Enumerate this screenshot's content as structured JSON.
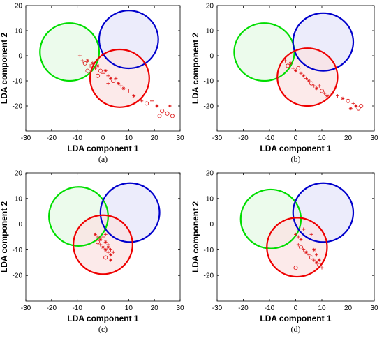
{
  "chart_data": [
    {
      "type": "scatter",
      "caption": "(a)",
      "xlabel": "LDA component 1",
      "ylabel": "LDA component 2",
      "xlim": [
        -30,
        30
      ],
      "ylim": [
        -30,
        20
      ],
      "xticks": [
        "-30",
        "-20",
        "-10",
        "0",
        "10",
        "20",
        "30"
      ],
      "yticks": [
        "20",
        "10",
        "0",
        "-10",
        "-20"
      ],
      "circles": [
        {
          "color": "#00dd00",
          "fill": "#e6fae6",
          "cx": -13,
          "cy": 1.5,
          "r": 11.5
        },
        {
          "color": "#0000cc",
          "fill": "#e6e6fa",
          "cx": 10,
          "cy": 6.5,
          "r": 11.5
        },
        {
          "color": "#ee0000",
          "fill": "#fbe3e3",
          "cx": 6.5,
          "cy": -9,
          "r": 11.5
        }
      ],
      "points": [
        {
          "x": -9,
          "y": 0,
          "m": "+"
        },
        {
          "x": -8,
          "y": -2,
          "m": "+"
        },
        {
          "x": -7,
          "y": -3,
          "m": "o"
        },
        {
          "x": -6,
          "y": -2,
          "m": "*"
        },
        {
          "x": -5,
          "y": -4,
          "m": "+"
        },
        {
          "x": -4,
          "y": -3,
          "m": "*"
        },
        {
          "x": -3,
          "y": -5,
          "m": "+"
        },
        {
          "x": -2,
          "y": -4,
          "m": "*"
        },
        {
          "x": -1,
          "y": -6,
          "m": "o"
        },
        {
          "x": 0,
          "y": -7,
          "m": "+"
        },
        {
          "x": 1,
          "y": -6,
          "m": "*"
        },
        {
          "x": 2,
          "y": -8,
          "m": "+"
        },
        {
          "x": 3,
          "y": -9,
          "m": "*"
        },
        {
          "x": 4,
          "y": -10,
          "m": "o"
        },
        {
          "x": 5,
          "y": -9,
          "m": "+"
        },
        {
          "x": 6,
          "y": -11,
          "m": "*"
        },
        {
          "x": 7,
          "y": -12,
          "m": "+"
        },
        {
          "x": 8,
          "y": -13,
          "m": "*"
        },
        {
          "x": -6,
          "y": -6,
          "m": "o"
        },
        {
          "x": -2,
          "y": -8,
          "m": "o"
        },
        {
          "x": 2,
          "y": -11,
          "m": "+"
        },
        {
          "x": 10,
          "y": -14,
          "m": "+"
        },
        {
          "x": 12,
          "y": -16,
          "m": "*"
        },
        {
          "x": 15,
          "y": -18,
          "m": "+"
        },
        {
          "x": 17,
          "y": -19,
          "m": "o"
        },
        {
          "x": 19,
          "y": -18,
          "m": "+"
        },
        {
          "x": 21,
          "y": -20,
          "m": "*"
        },
        {
          "x": 23,
          "y": -22,
          "m": "o"
        },
        {
          "x": 25,
          "y": -23,
          "m": "o"
        },
        {
          "x": 27,
          "y": -24,
          "m": "o"
        },
        {
          "x": 26,
          "y": -20,
          "m": "*"
        },
        {
          "x": 22,
          "y": -24,
          "m": "o"
        }
      ]
    },
    {
      "type": "scatter",
      "caption": "(b)",
      "xlabel": "LDA component 1",
      "ylabel": "LDA component 2",
      "xlim": [
        -30,
        30
      ],
      "ylim": [
        -30,
        20
      ],
      "xticks": [
        "-30",
        "-20",
        "-10",
        "0",
        "10",
        "20",
        "30"
      ],
      "yticks": [
        "20",
        "10",
        "0",
        "-10",
        "-20"
      ],
      "circles": [
        {
          "color": "#00dd00",
          "fill": "#e6fae6",
          "cx": -12,
          "cy": 1.5,
          "r": 11.5
        },
        {
          "color": "#0000cc",
          "fill": "#e6e6fa",
          "cx": 10.5,
          "cy": 5.5,
          "r": 11.5
        },
        {
          "color": "#ee0000",
          "fill": "#fbe3e3",
          "cx": 4.5,
          "cy": -8.5,
          "r": 11.5
        }
      ],
      "points": [
        {
          "x": -4,
          "y": -2,
          "m": "+"
        },
        {
          "x": -3,
          "y": -4,
          "m": "o"
        },
        {
          "x": -2,
          "y": -3,
          "m": "*"
        },
        {
          "x": -1,
          "y": -5,
          "m": "+"
        },
        {
          "x": 0,
          "y": -6,
          "m": "*"
        },
        {
          "x": 1,
          "y": -5,
          "m": "o"
        },
        {
          "x": 2,
          "y": -7,
          "m": "+"
        },
        {
          "x": 3,
          "y": -8,
          "m": "*"
        },
        {
          "x": 4,
          "y": -9,
          "m": "+"
        },
        {
          "x": 5,
          "y": -10,
          "m": "*"
        },
        {
          "x": 6,
          "y": -11,
          "m": "o"
        },
        {
          "x": 7,
          "y": -12,
          "m": "+"
        },
        {
          "x": 8,
          "y": -13,
          "m": "*"
        },
        {
          "x": 9,
          "y": -12,
          "m": "+"
        },
        {
          "x": 10,
          "y": -14,
          "m": "o"
        },
        {
          "x": 11,
          "y": -15,
          "m": "+"
        },
        {
          "x": 12,
          "y": -16,
          "m": "*"
        },
        {
          "x": 14,
          "y": -15,
          "m": "+"
        },
        {
          "x": 16,
          "y": -16,
          "m": "+"
        },
        {
          "x": 18,
          "y": -17,
          "m": "*"
        },
        {
          "x": 20,
          "y": -18,
          "m": "o"
        },
        {
          "x": 22,
          "y": -19,
          "m": "+"
        },
        {
          "x": 23,
          "y": -20,
          "m": "*"
        },
        {
          "x": 24,
          "y": -21,
          "m": "o"
        },
        {
          "x": 25,
          "y": -20,
          "m": "o"
        },
        {
          "x": 21,
          "y": -21,
          "m": "*"
        }
      ]
    },
    {
      "type": "scatter",
      "caption": "(c)",
      "xlabel": "LDA component 1",
      "ylabel": "LDA component 2",
      "xlim": [
        -30,
        30
      ],
      "ylim": [
        -30,
        20
      ],
      "xticks": [
        "-30",
        "-20",
        "-10",
        "0",
        "10",
        "20",
        "30"
      ],
      "yticks": [
        "20",
        "10",
        "0",
        "-10",
        "-20"
      ],
      "circles": [
        {
          "color": "#00dd00",
          "fill": "#e6fae6",
          "cx": -9.5,
          "cy": 3,
          "r": 11.5
        },
        {
          "color": "#0000cc",
          "fill": "#e6e6fa",
          "cx": 10.5,
          "cy": 4.5,
          "r": 11.5
        },
        {
          "color": "#ee0000",
          "fill": "#fbe3e3",
          "cx": 0,
          "cy": -8,
          "r": 11.5
        }
      ],
      "points": [
        {
          "x": -3,
          "y": -4,
          "m": "*"
        },
        {
          "x": -2,
          "y": -5,
          "m": "+"
        },
        {
          "x": -1,
          "y": -6,
          "m": "*"
        },
        {
          "x": 0,
          "y": -5,
          "m": "+"
        },
        {
          "x": 1,
          "y": -7,
          "m": "*"
        },
        {
          "x": 2,
          "y": -8,
          "m": "+"
        },
        {
          "x": 1,
          "y": -10,
          "m": "*"
        },
        {
          "x": 2,
          "y": -11,
          "m": "+"
        },
        {
          "x": 3,
          "y": -12,
          "m": "*"
        },
        {
          "x": 1,
          "y": -13,
          "m": "o"
        },
        {
          "x": 2,
          "y": -9,
          "m": "*"
        },
        {
          "x": 3,
          "y": -10,
          "m": "+"
        },
        {
          "x": 0,
          "y": -9,
          "m": "*"
        },
        {
          "x": -1,
          "y": -8,
          "m": "+"
        },
        {
          "x": 3,
          "y": -14,
          "m": "*"
        },
        {
          "x": 4,
          "y": -11,
          "m": "+"
        },
        {
          "x": -2,
          "y": -7,
          "m": "o"
        },
        {
          "x": 1,
          "y": -4,
          "m": "+"
        }
      ]
    },
    {
      "type": "scatter",
      "caption": "(d)",
      "xlabel": "LDA component 1",
      "ylabel": "LDA component 2",
      "xlim": [
        -30,
        30
      ],
      "ylim": [
        -30,
        20
      ],
      "xticks": [
        "-30",
        "-20",
        "-10",
        "0",
        "10",
        "20",
        "30"
      ],
      "yticks": [
        "20",
        "10",
        "0",
        "-10",
        "-20"
      ],
      "circles": [
        {
          "color": "#00dd00",
          "fill": "#e6fae6",
          "cx": -9.5,
          "cy": 2,
          "r": 11.5
        },
        {
          "color": "#0000cc",
          "fill": "#e6e6fa",
          "cx": 10.5,
          "cy": 4.5,
          "r": 11.5
        },
        {
          "color": "#ee0000",
          "fill": "#fbe3e3",
          "cx": 0.5,
          "cy": -9,
          "r": 11.5
        }
      ],
      "points": [
        {
          "x": 0,
          "y": -4,
          "m": "+"
        },
        {
          "x": 1,
          "y": -5,
          "m": "+"
        },
        {
          "x": 2,
          "y": -6,
          "m": "*"
        },
        {
          "x": 1,
          "y": -8,
          "m": "+"
        },
        {
          "x": 2,
          "y": -9,
          "m": "o"
        },
        {
          "x": 3,
          "y": -10,
          "m": "+"
        },
        {
          "x": 4,
          "y": -11,
          "m": "*"
        },
        {
          "x": 5,
          "y": -12,
          "m": "+"
        },
        {
          "x": 6,
          "y": -13,
          "m": "o"
        },
        {
          "x": 7,
          "y": -14,
          "m": "+"
        },
        {
          "x": 8,
          "y": -15,
          "m": "*"
        },
        {
          "x": 9,
          "y": -16,
          "m": "o"
        },
        {
          "x": 10,
          "y": -17,
          "m": "+"
        },
        {
          "x": 3,
          "y": -2,
          "m": "+"
        },
        {
          "x": 6,
          "y": -4,
          "m": "+"
        },
        {
          "x": 7,
          "y": -10,
          "m": "*"
        },
        {
          "x": 8,
          "y": -12,
          "m": "+"
        },
        {
          "x": 9,
          "y": -14,
          "m": "*"
        },
        {
          "x": 0,
          "y": -17,
          "m": "o"
        }
      ]
    }
  ]
}
